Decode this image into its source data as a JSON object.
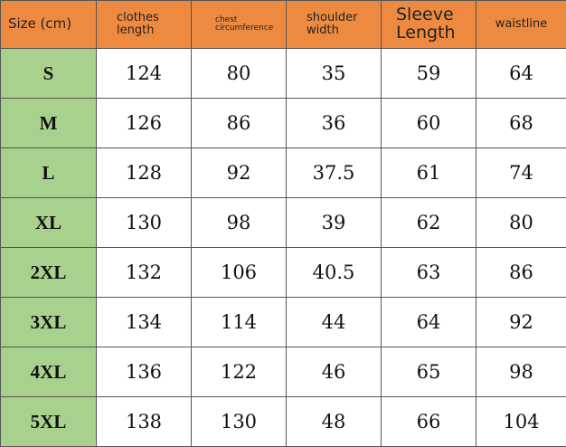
{
  "table": {
    "header": [
      "Size (cm)",
      "clothes length",
      "chest circumference",
      "shoulder width",
      "Sleeve Length",
      "waistline"
    ],
    "rows": [
      [
        "S",
        124,
        80,
        35,
        59,
        64
      ],
      [
        "M",
        126,
        86,
        36,
        60,
        68
      ],
      [
        "L",
        128,
        92,
        37.5,
        61,
        74
      ],
      [
        "XL",
        130,
        98,
        39,
        62,
        80
      ],
      [
        "2XL",
        132,
        106,
        40.5,
        63,
        86
      ],
      [
        "3XL",
        134,
        114,
        44,
        64,
        92
      ],
      [
        "4XL",
        136,
        122,
        46,
        65,
        98
      ],
      [
        "5XL",
        138,
        130,
        48,
        66,
        104
      ]
    ]
  }
}
